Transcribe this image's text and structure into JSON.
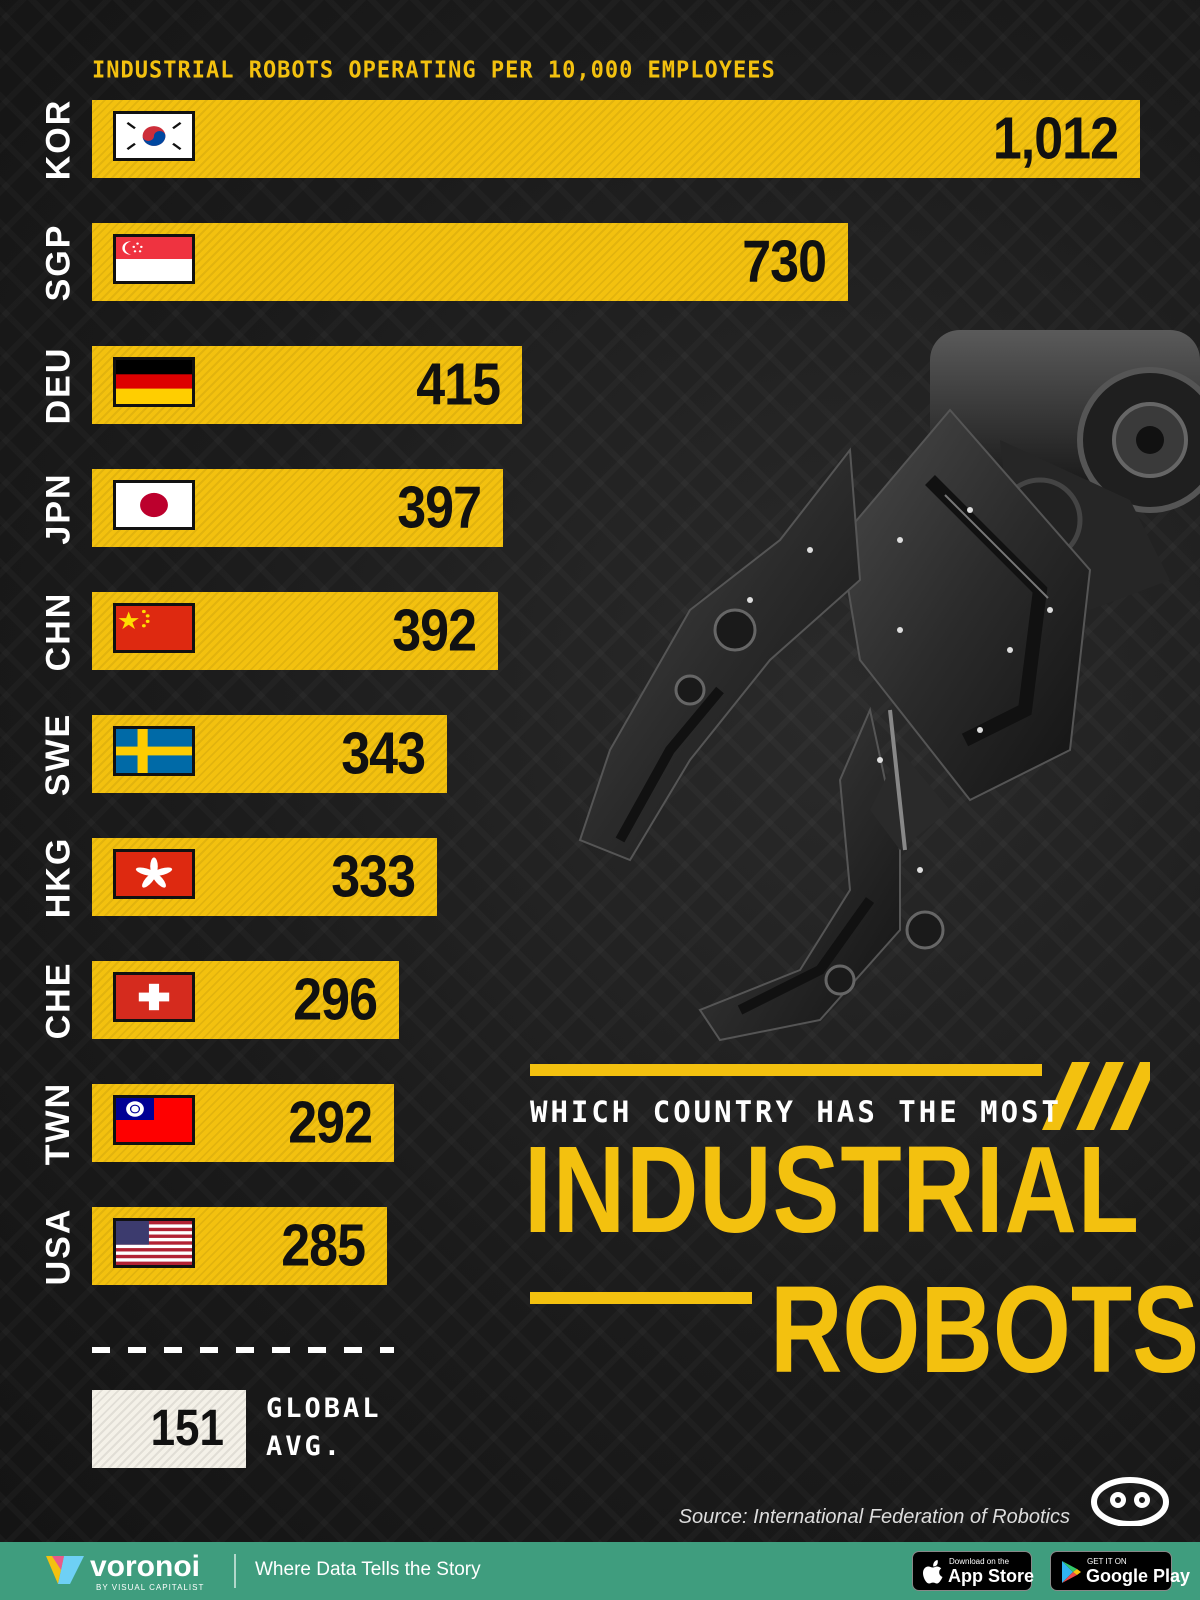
{
  "header": {
    "subtitle": "INDUSTRIAL ROBOTS OPERATING PER 10,000 EMPLOYEES"
  },
  "chart_data": {
    "type": "bar",
    "orientation": "horizontal",
    "categories": [
      "KOR",
      "SGP",
      "DEU",
      "JPN",
      "CHN",
      "SWE",
      "HKG",
      "CHE",
      "TWN",
      "USA"
    ],
    "values": [
      1012,
      730,
      415,
      397,
      392,
      343,
      333,
      296,
      292,
      285
    ],
    "value_labels": [
      "1,012",
      "730",
      "415",
      "397",
      "392",
      "343",
      "333",
      "296",
      "292",
      "285"
    ],
    "title": "",
    "xlabel": "",
    "ylabel": "",
    "xlim": [
      0,
      1012
    ],
    "grid": false,
    "bar_color": "#f3c10f",
    "reference": {
      "value": 151,
      "value_label": "151",
      "label_line1": "GLOBAL",
      "label_line2": "AVG."
    }
  },
  "title": {
    "line1": "WHICH COUNTRY HAS THE MOST",
    "line2": "INDUSTRIAL",
    "line3": "ROBOTS"
  },
  "source": "Source: International Federation of Robotics",
  "footer": {
    "brand": "voronoi",
    "brand_sub": "BY VISUAL CAPITALIST",
    "tagline": "Where Data Tells the Story",
    "appstore_small": "Download on the",
    "appstore_big": "App Store",
    "gplay_small": "GET IT ON",
    "gplay_big": "Google Play"
  },
  "colors": {
    "accent": "#f3c10f",
    "background": "#1a1a1a",
    "footer": "#3f9d7e"
  }
}
